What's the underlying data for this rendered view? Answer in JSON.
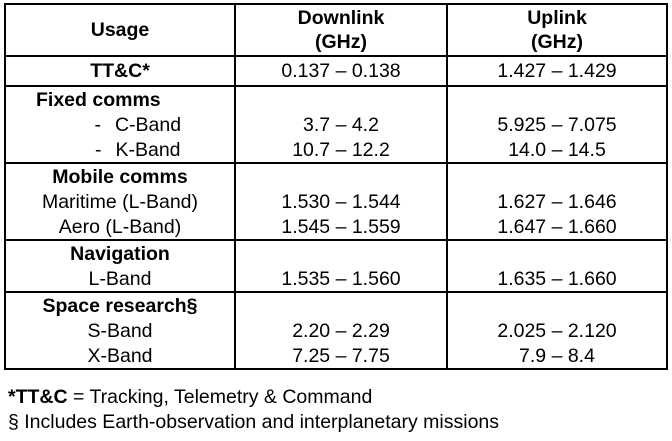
{
  "table": {
    "headers": {
      "usage": "Usage",
      "downlink_line1": "Downlink",
      "downlink_line2": "(GHz)",
      "uplink_line1": "Uplink",
      "uplink_line2": "(GHz)"
    },
    "ttc": {
      "label": "TT&C*",
      "downlink": "0.137 – 0.138",
      "uplink": "1.427 – 1.429"
    },
    "fixed": {
      "title": "Fixed comms",
      "rows": [
        {
          "dash": "-",
          "label": "C-Band",
          "downlink": "3.7 – 4.2",
          "uplink": "5.925 – 7.075"
        },
        {
          "dash": "-",
          "label": "K-Band",
          "downlink": "10.7 – 12.2",
          "uplink": "14.0 – 14.5"
        }
      ]
    },
    "mobile": {
      "title": "Mobile comms",
      "rows": [
        {
          "label": "Maritime (L-Band)",
          "downlink": "1.530 – 1.544",
          "uplink": "1.627 – 1.646"
        },
        {
          "label": "Aero (L-Band)",
          "downlink": "1.545 – 1.559",
          "uplink": "1.647 – 1.660"
        }
      ]
    },
    "navigation": {
      "title": "Navigation",
      "rows": [
        {
          "label": "L-Band",
          "downlink": "1.535 – 1.560",
          "uplink": "1.635 – 1.660"
        }
      ]
    },
    "space": {
      "title": "Space research§",
      "rows": [
        {
          "label": "S-Band",
          "downlink": "2.20 – 2.29",
          "uplink": "2.025 – 2.120"
        },
        {
          "label": "X-Band",
          "downlink": "7.25 – 7.75",
          "uplink": "7.9 – 8.4"
        }
      ]
    }
  },
  "footnotes": {
    "ttc_term": "*TT&C",
    "ttc_definition": " = Tracking, Telemetry & Command",
    "section_note": "§ Includes Earth-observation and interplanetary missions"
  }
}
